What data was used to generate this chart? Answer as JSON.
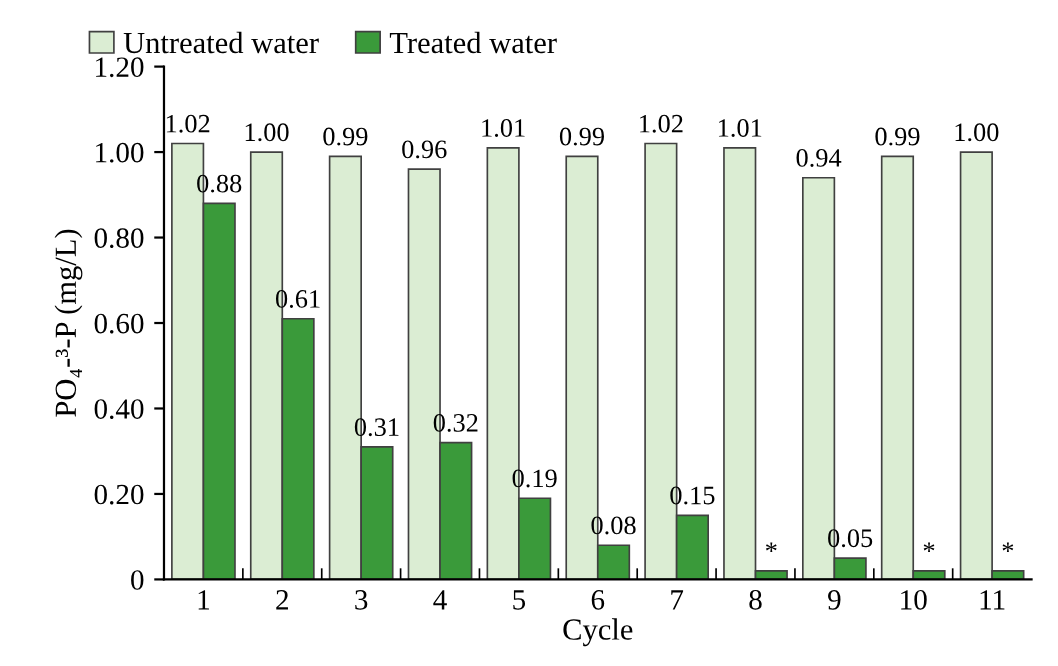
{
  "chart_data": {
    "type": "bar",
    "xlabel": "Cycle",
    "ylabel": "PO₄-³-P (mg/L)",
    "categories": [
      "1",
      "2",
      "3",
      "4",
      "5",
      "6",
      "7",
      "8",
      "9",
      "10",
      "11"
    ],
    "series": [
      {
        "name": "Untreated water",
        "color": "#dbedd3",
        "values": [
          1.02,
          1.0,
          0.99,
          0.96,
          1.01,
          0.99,
          1.02,
          1.01,
          0.94,
          0.99,
          1.0
        ],
        "value_labels": [
          "1.02",
          "1.00",
          "0.99",
          "0.96",
          "1.01",
          "0.99",
          "1.02",
          "1.01",
          "0.94",
          "0.99",
          "1.00"
        ]
      },
      {
        "name": "Treated water",
        "color": "#3a9a3a",
        "values": [
          0.88,
          0.61,
          0.31,
          0.32,
          0.19,
          0.08,
          0.15,
          0.02,
          0.05,
          0.02,
          0.02
        ],
        "value_labels": [
          "0.88",
          "0.61",
          "0.31",
          "0.32",
          "0.19",
          "0.08",
          "0.15",
          "*",
          "0.05",
          "*",
          "*"
        ]
      }
    ],
    "ylim": [
      0,
      1.2
    ],
    "yticks": [
      {
        "value": 0,
        "label": "0"
      },
      {
        "value": 0.2,
        "label": "0.20"
      },
      {
        "value": 0.4,
        "label": "0.40"
      },
      {
        "value": 0.6,
        "label": "0.60"
      },
      {
        "value": 0.8,
        "label": "0.80"
      },
      {
        "value": 1.0,
        "label": "1.00"
      },
      {
        "value": 1.2,
        "label": "1.20"
      }
    ],
    "legend": "top left",
    "grid": false
  }
}
